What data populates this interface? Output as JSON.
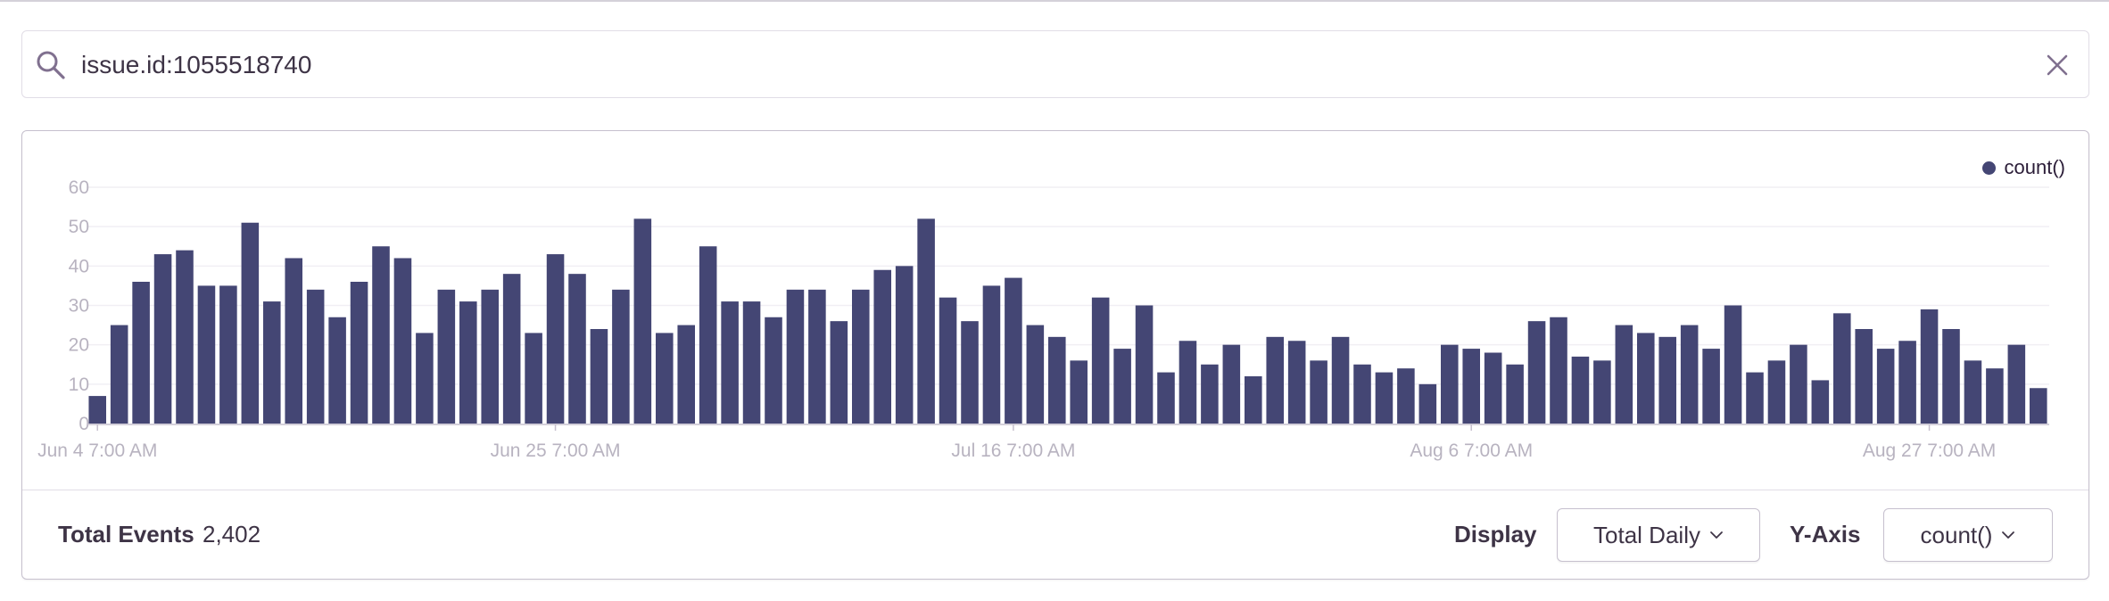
{
  "search": {
    "query": "issue.id:1055518740"
  },
  "legend": {
    "label": "count()",
    "color": "#444674"
  },
  "footer": {
    "total_label": "Total Events",
    "total_value": "2,402",
    "display_label": "Display",
    "display_value": "Total Daily",
    "yaxis_label": "Y-Axis",
    "yaxis_value": "count()"
  },
  "colors": {
    "bar": "#444674",
    "grid": "#f1eff4",
    "axis_text": "#b8b3c0"
  },
  "chart_data": {
    "type": "bar",
    "series": [
      {
        "name": "count()",
        "values": [
          7,
          25,
          36,
          43,
          44,
          35,
          35,
          51,
          31,
          42,
          34,
          27,
          36,
          45,
          42,
          23,
          34,
          31,
          34,
          38,
          23,
          43,
          38,
          24,
          34,
          52,
          23,
          25,
          45,
          31,
          31,
          27,
          34,
          34,
          26,
          34,
          39,
          40,
          52,
          32,
          26,
          35,
          37,
          25,
          22,
          16,
          32,
          19,
          30,
          13,
          21,
          15,
          20,
          12,
          22,
          21,
          16,
          22,
          15,
          13,
          14,
          10,
          20,
          19,
          18,
          15,
          26,
          27,
          17,
          16,
          25,
          23,
          22,
          25,
          19,
          30,
          13,
          16,
          20,
          11,
          28,
          24,
          19,
          21,
          29,
          24,
          16,
          14,
          20,
          9
        ]
      }
    ],
    "x_tick_labels": [
      "Jun 4 7:00 AM",
      "Jun 25 7:00 AM",
      "Jul 16 7:00 AM",
      "Aug 6 7:00 AM",
      "Aug 27 7:00 AM"
    ],
    "x_tick_indices": [
      0,
      21,
      42,
      63,
      84
    ],
    "y_ticks": [
      0,
      10,
      20,
      30,
      40,
      50,
      60
    ],
    "ylim": [
      0,
      60
    ],
    "grid": true,
    "legend_position": "top-right"
  }
}
